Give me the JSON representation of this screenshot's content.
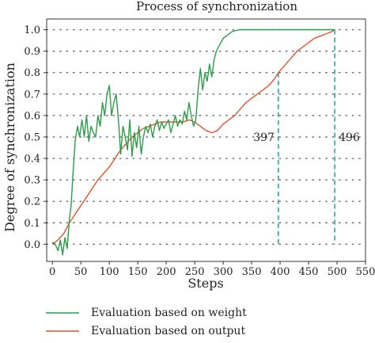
{
  "chart_data": {
    "type": "line",
    "title": "Process of synchronization",
    "xlabel": "Steps",
    "ylabel": "Degree of synchronization",
    "xlim": [
      -10,
      550
    ],
    "ylim": [
      -0.08,
      1.05
    ],
    "xticks": [
      0,
      50,
      100,
      150,
      200,
      250,
      300,
      350,
      400,
      450,
      500,
      550
    ],
    "yticks": [
      0.0,
      0.1,
      0.2,
      0.3,
      0.4,
      0.5,
      0.6,
      0.7,
      0.8,
      0.9,
      1.0
    ],
    "ytick_labels": [
      "0.0",
      "0.1",
      "0.2",
      "0.3",
      "0.4",
      "0.5",
      "0.6",
      "0.7",
      "0.8",
      "0.9",
      "1.0"
    ],
    "grid": "horizontal dotted",
    "legend": "bottom",
    "series": [
      {
        "name": "Evaluation based on weight",
        "color": "#2a9d48",
        "x": [
          0,
          5,
          10,
          14,
          18,
          22,
          26,
          30,
          33,
          36,
          40,
          44,
          48,
          52,
          56,
          60,
          64,
          68,
          72,
          76,
          80,
          84,
          88,
          92,
          96,
          100,
          104,
          108,
          112,
          116,
          120,
          124,
          128,
          132,
          136,
          140,
          144,
          148,
          152,
          156,
          160,
          164,
          168,
          172,
          176,
          180,
          184,
          188,
          192,
          196,
          200,
          204,
          208,
          212,
          216,
          220,
          224,
          228,
          232,
          236,
          240,
          244,
          248,
          252,
          256,
          260,
          264,
          268,
          272,
          276,
          280,
          284,
          288,
          292,
          296,
          300,
          305,
          310,
          315,
          320,
          330,
          340,
          350,
          360,
          380,
          400,
          420,
          440,
          460,
          480,
          496
        ],
        "y": [
          0.01,
          0.0,
          -0.03,
          0.02,
          -0.05,
          0.03,
          -0.02,
          0.12,
          0.18,
          0.32,
          0.48,
          0.55,
          0.5,
          0.58,
          0.5,
          0.6,
          0.48,
          0.55,
          0.52,
          0.5,
          0.6,
          0.55,
          0.66,
          0.6,
          0.7,
          0.74,
          0.6,
          0.66,
          0.7,
          0.58,
          0.42,
          0.55,
          0.5,
          0.44,
          0.58,
          0.41,
          0.52,
          0.45,
          0.55,
          0.42,
          0.5,
          0.55,
          0.52,
          0.56,
          0.5,
          0.55,
          0.58,
          0.53,
          0.57,
          0.54,
          0.56,
          0.58,
          0.52,
          0.56,
          0.6,
          0.55,
          0.58,
          0.56,
          0.62,
          0.58,
          0.66,
          0.6,
          0.55,
          0.58,
          0.72,
          0.82,
          0.72,
          0.8,
          0.76,
          0.84,
          0.78,
          0.86,
          0.9,
          0.92,
          0.94,
          0.96,
          0.97,
          0.98,
          0.99,
          0.995,
          1.0,
          1.0,
          1.0,
          1.0,
          1.0,
          1.0,
          1.0,
          1.0,
          1.0,
          1.0,
          1.0
        ]
      },
      {
        "name": "Evaluation based on output",
        "color": "#e0542a",
        "x": [
          0,
          10,
          20,
          30,
          40,
          50,
          60,
          70,
          80,
          90,
          100,
          110,
          120,
          130,
          140,
          150,
          160,
          170,
          180,
          190,
          200,
          210,
          220,
          230,
          240,
          250,
          260,
          270,
          280,
          290,
          300,
          310,
          320,
          330,
          340,
          350,
          360,
          370,
          380,
          390,
          397,
          410,
          420,
          430,
          440,
          450,
          460,
          470,
          480,
          490,
          496
        ],
        "y": [
          0.0,
          0.02,
          0.05,
          0.1,
          0.14,
          0.18,
          0.22,
          0.26,
          0.3,
          0.33,
          0.36,
          0.4,
          0.44,
          0.47,
          0.5,
          0.52,
          0.54,
          0.55,
          0.56,
          0.57,
          0.57,
          0.57,
          0.57,
          0.57,
          0.58,
          0.57,
          0.55,
          0.53,
          0.52,
          0.53,
          0.56,
          0.58,
          0.6,
          0.63,
          0.66,
          0.68,
          0.7,
          0.72,
          0.74,
          0.77,
          0.8,
          0.84,
          0.87,
          0.9,
          0.92,
          0.94,
          0.96,
          0.97,
          0.98,
          0.99,
          1.0
        ]
      }
    ],
    "markers": [
      {
        "x": 397,
        "label": "397"
      },
      {
        "x": 496,
        "label": "496"
      }
    ],
    "marker_color": "#1aaea0"
  }
}
